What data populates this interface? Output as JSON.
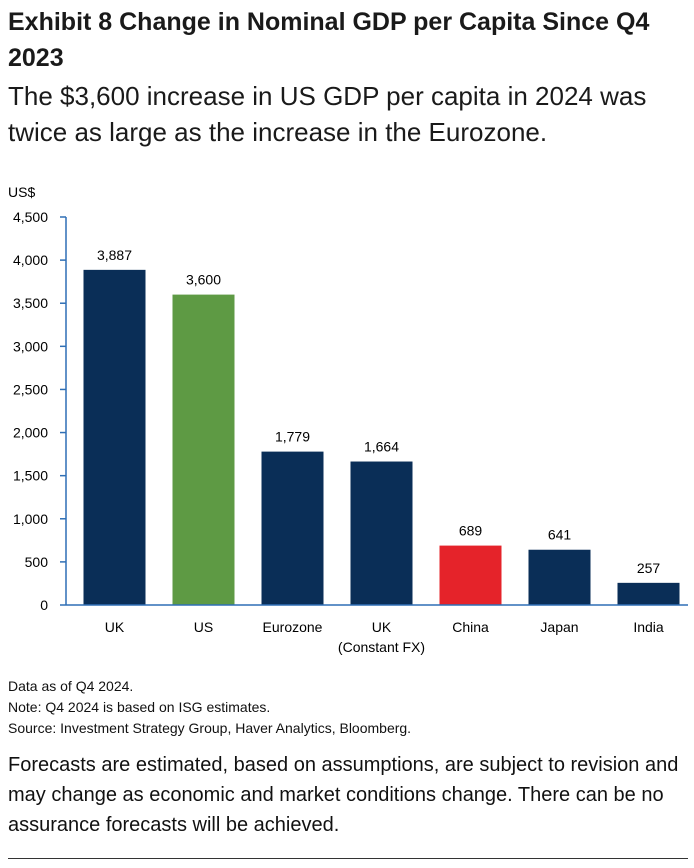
{
  "title": "Exhibit 8 Change in Nominal GDP per Capita Since Q4 2023",
  "subtitle": "The $3,600 increase in US GDP per capita in 2024 was twice as large as the increase in the Eurozone.",
  "notes": {
    "data_as_of": "Data as of Q4 2024.",
    "note": "Note: Q4 2024 is based on ISG estimates.",
    "source": "Source: Investment Strategy Group, Haver Analytics, Bloomberg."
  },
  "disclaimer": "Forecasts are estimated, based on assumptions, are subject to revision and may change as economic and market conditions change. There can be no assurance forecasts will be achieved.",
  "colors": {
    "navy": "#0a2e57",
    "green": "#5e9a44",
    "red": "#e5232a",
    "axis": "#2f6fb5"
  },
  "chart_data": {
    "type": "bar",
    "title": "Change in Nominal GDP per Capita Since Q4 2023",
    "ylabel": "US$",
    "xlabel": "",
    "ylim": [
      0,
      4500
    ],
    "yticks": [
      0,
      500,
      1000,
      1500,
      2000,
      2500,
      3000,
      3500,
      4000,
      4500
    ],
    "ytick_labels": [
      "0",
      "500",
      "1,000",
      "1,500",
      "2,000",
      "2,500",
      "3,000",
      "3,500",
      "4,000",
      "4,500"
    ],
    "categories": [
      [
        "UK"
      ],
      [
        "US"
      ],
      [
        "Eurozone"
      ],
      [
        "UK",
        "(Constant FX)"
      ],
      [
        "China"
      ],
      [
        "Japan"
      ],
      [
        "India"
      ]
    ],
    "values": [
      3887,
      3600,
      1779,
      1664,
      689,
      641,
      257
    ],
    "value_labels": [
      "3,887",
      "3,600",
      "1,779",
      "1,664",
      "689",
      "641",
      "257"
    ],
    "bar_colors": [
      "navy",
      "green",
      "navy",
      "navy",
      "red",
      "navy",
      "navy"
    ],
    "grid": false
  }
}
